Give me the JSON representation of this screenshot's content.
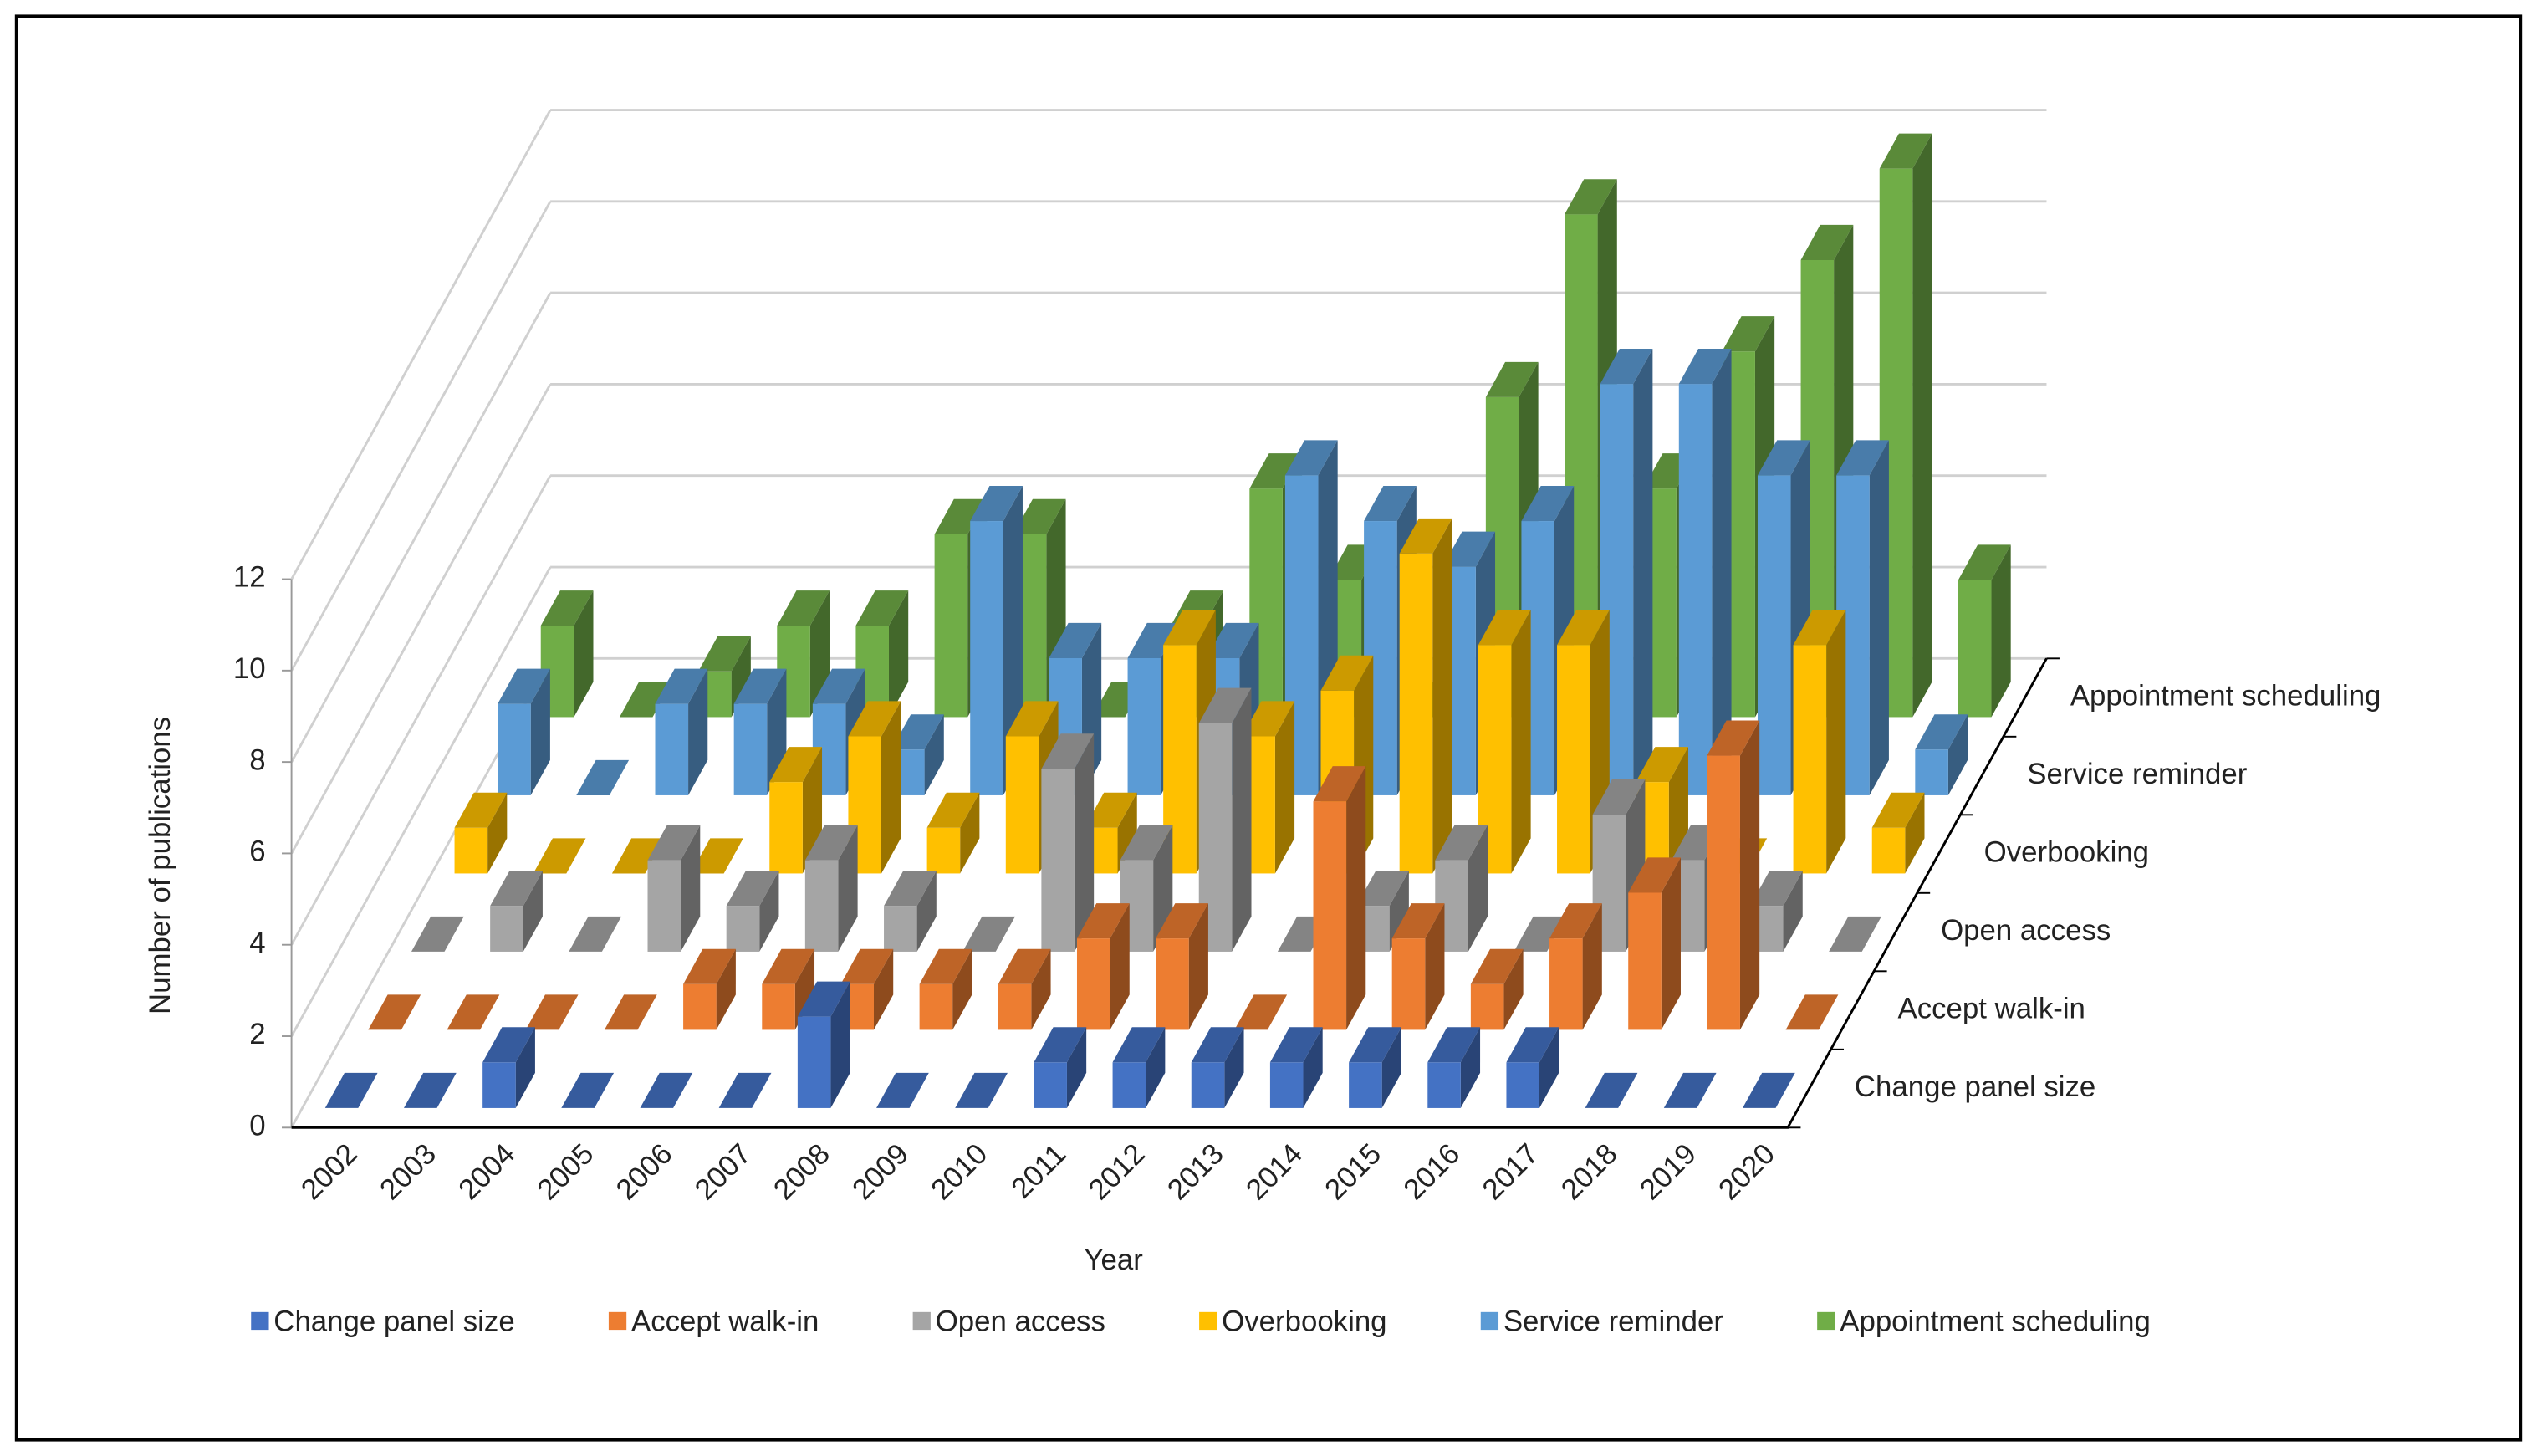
{
  "chart_data": {
    "type": "bar3d",
    "x_label": "Year",
    "y_label": "Number of publications",
    "categories": [
      "2002",
      "2003",
      "2004",
      "2005",
      "2006",
      "2007",
      "2008",
      "2009",
      "2010",
      "2011",
      "2012",
      "2013",
      "2014",
      "2015",
      "2016",
      "2017",
      "2018",
      "2019",
      "2020"
    ],
    "series": [
      {
        "name": "Change panel size",
        "color": "#4472c4",
        "values": [
          0,
          0,
          1,
          0,
          0,
          0,
          2,
          0,
          0,
          1,
          1,
          1,
          1,
          1,
          1,
          1,
          0,
          0,
          0
        ]
      },
      {
        "name": "Accept walk-in",
        "color": "#ed7d31",
        "values": [
          0,
          0,
          0,
          0,
          1,
          1,
          1,
          1,
          1,
          2,
          2,
          0,
          5,
          2,
          1,
          2,
          3,
          6,
          0
        ]
      },
      {
        "name": "Open access",
        "color": "#a5a5a5",
        "values": [
          0,
          1,
          0,
          2,
          1,
          2,
          1,
          0,
          4,
          2,
          5,
          0,
          1,
          2,
          0,
          3,
          2,
          1,
          0
        ]
      },
      {
        "name": "Overbooking",
        "color": "#ffc000",
        "values": [
          1,
          0,
          0,
          0,
          2,
          3,
          1,
          3,
          1,
          5,
          3,
          4,
          7,
          5,
          5,
          2,
          0,
          5,
          1
        ]
      },
      {
        "name": "Service reminder",
        "color": "#5b9bd5",
        "values": [
          2,
          0,
          2,
          2,
          2,
          1,
          6,
          3,
          3,
          3,
          7,
          6,
          5,
          6,
          9,
          9,
          7,
          7,
          1
        ]
      },
      {
        "name": "Appointment scheduling",
        "color": "#70ad47",
        "values": [
          2,
          0,
          1,
          2,
          2,
          4,
          4,
          0,
          2,
          5,
          3,
          0,
          7,
          11,
          5,
          8,
          10,
          12,
          3
        ]
      }
    ],
    "ylim": [
      0,
      12
    ],
    "yticks": [
      0,
      2,
      4,
      6,
      8,
      10,
      12
    ],
    "grid": true,
    "legend": "bottom"
  }
}
